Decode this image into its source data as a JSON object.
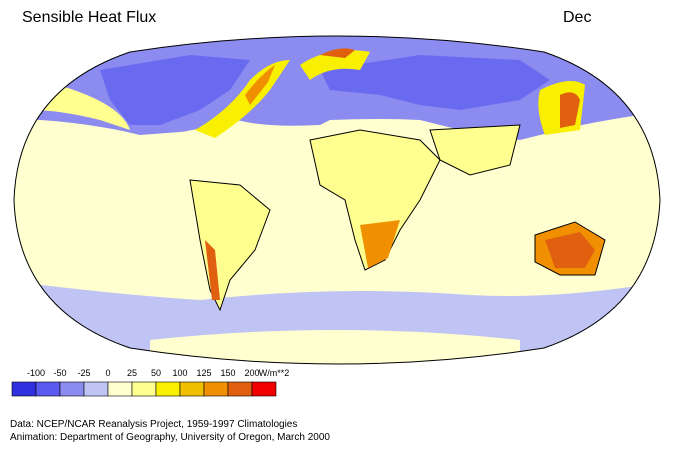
{
  "title": "Sensible Heat Flux",
  "month": "Dec",
  "legend": {
    "ticks": [
      -100,
      -50,
      -25,
      0,
      25,
      50,
      100,
      125,
      150,
      200
    ],
    "unit": "W/m**2",
    "colors": [
      "#3030e0",
      "#5a5af0",
      "#8c8cf0",
      "#c0c4f4",
      "#ffffd0",
      "#ffff90",
      "#f8f000",
      "#f0c000",
      "#f09000",
      "#e06010",
      "#f00000"
    ]
  },
  "credits": [
    "Data:  NCEP/NCAR Reanalysis Project, 1959-1997 Climatologies",
    "Animation:  Department of Geography, University of Oregon, March 2000"
  ]
}
